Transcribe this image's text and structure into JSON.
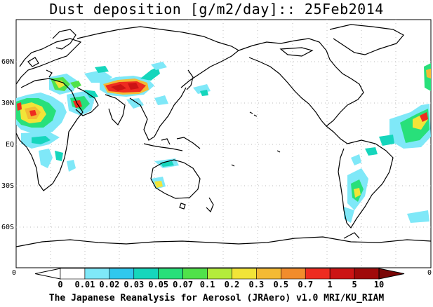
{
  "title": "Dust deposition [g/m2/day]:: 25Feb2014",
  "credit": "The Japanese Reanalysis for Aerosol (JRAero) v1.0 MRI/KU_RIAM",
  "lat_labels": [
    "60N",
    "30N",
    "EQ",
    "30S",
    "60S"
  ],
  "axis_end_labels": [
    "0",
    "0"
  ],
  "colorbar": {
    "labels": [
      "0",
      "0.01",
      "0.02",
      "0.03",
      "0.05",
      "0.07",
      "0.1",
      "0.2",
      "0.3",
      "0.5",
      "0.7",
      "1",
      "5",
      "10"
    ],
    "colors": [
      "#ffffff",
      "#ffffff",
      "#7fe8f8",
      "#30c8ee",
      "#16d6bc",
      "#28e07a",
      "#50e24a",
      "#b4ec3c",
      "#f2e438",
      "#f4ba34",
      "#f28c2c",
      "#ee2c20",
      "#cc1414",
      "#a00a0a",
      "#7a0606"
    ]
  },
  "colors": {
    "coastline": "#000000",
    "grid": "#bbbbbb",
    "low": "#7fe8f8",
    "mid": "#16d6bc",
    "green": "#28e07a",
    "yellow": "#f2e438",
    "orange": "#f4ba34",
    "red": "#ee2c20",
    "darkred": "#cc1414"
  }
}
